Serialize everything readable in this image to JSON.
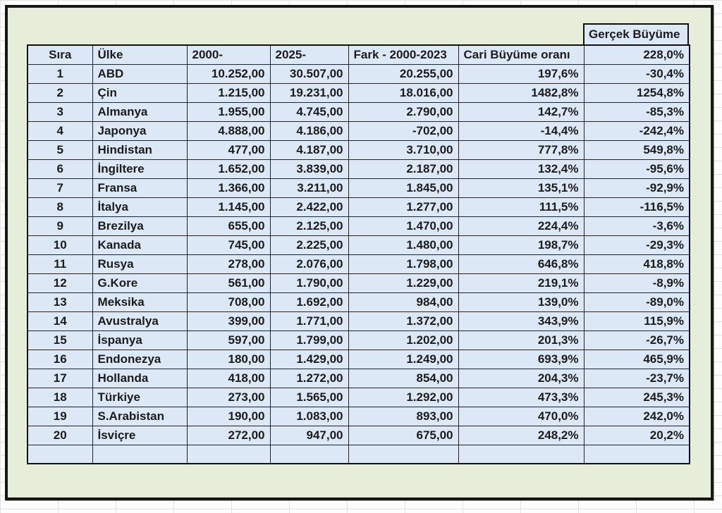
{
  "colors": {
    "accent_red": "#e0353d",
    "text_black": "#1c1c1c",
    "cell_fill": "#dce8f5",
    "panel_green": "#e6eeda",
    "frame_black": "#161616"
  },
  "gercek_panel": {
    "title": "Gerçek Büyüme",
    "header_value": "228,0%"
  },
  "table": {
    "headers": [
      "Sıra",
      "Ülke",
      "2000-",
      "2025-",
      "Fark - 2000-2023",
      "Cari Büyüme oranı"
    ],
    "rows": [
      {
        "color": "red",
        "cells": [
          "1",
          "ABD",
          "10.252,00",
          "30.507,00",
          "20.255,00",
          "197,6%",
          "-30,4%"
        ]
      },
      {
        "color": "black",
        "cells": [
          "2",
          "Çin",
          "1.215,00",
          "19.231,00",
          "18.016,00",
          "1482,8%",
          "1254,8%"
        ]
      },
      {
        "color": "red",
        "cells": [
          "3",
          "Almanya",
          "1.955,00",
          "4.745,00",
          "2.790,00",
          "142,7%",
          "-85,3%"
        ]
      },
      {
        "color": "red",
        "cells": [
          "4",
          "Japonya",
          "4.888,00",
          "4.186,00",
          "-702,00",
          "-14,4%",
          "-242,4%"
        ]
      },
      {
        "color": "black",
        "cells": [
          "5",
          "Hindistan",
          "477,00",
          "4.187,00",
          "3.710,00",
          "777,8%",
          "549,8%"
        ]
      },
      {
        "color": "red",
        "cells": [
          "6",
          "İngiltere",
          "1.652,00",
          "3.839,00",
          "2.187,00",
          "132,4%",
          "-95,6%"
        ]
      },
      {
        "color": "red",
        "cells": [
          "7",
          "Fransa",
          "1.366,00",
          "3.211,00",
          "1.845,00",
          "135,1%",
          "-92,9%"
        ]
      },
      {
        "color": "red",
        "cells": [
          "8",
          "İtalya",
          "1.145,00",
          "2.422,00",
          "1.277,00",
          "111,5%",
          "-116,5%"
        ]
      },
      {
        "color": "red",
        "cells": [
          "9",
          "Brezilya",
          "655,00",
          "2.125,00",
          "1.470,00",
          "224,4%",
          "-3,6%"
        ]
      },
      {
        "color": "red",
        "cells": [
          "10",
          "Kanada",
          "745,00",
          "2.225,00",
          "1.480,00",
          "198,7%",
          "-29,3%"
        ]
      },
      {
        "color": "black",
        "cells": [
          "11",
          "Rusya",
          "278,00",
          "2.076,00",
          "1.798,00",
          "646,8%",
          "418,8%"
        ]
      },
      {
        "color": "red",
        "cells": [
          "12",
          "G.Kore",
          "561,00",
          "1.790,00",
          "1.229,00",
          "219,1%",
          "-8,9%"
        ]
      },
      {
        "color": "red",
        "cells": [
          "13",
          "Meksika",
          "708,00",
          "1.692,00",
          "984,00",
          "139,0%",
          "-89,0%"
        ]
      },
      {
        "color": "black",
        "cells": [
          "14",
          "Avustralya",
          "399,00",
          "1.771,00",
          "1.372,00",
          "343,9%",
          "115,9%"
        ]
      },
      {
        "color": "red",
        "cells": [
          "15",
          "İspanya",
          "597,00",
          "1.799,00",
          "1.202,00",
          "201,3%",
          "-26,7%"
        ]
      },
      {
        "color": "black",
        "cells": [
          "16",
          "Endonezya",
          "180,00",
          "1.429,00",
          "1.249,00",
          "693,9%",
          "465,9%"
        ]
      },
      {
        "color": "red",
        "cells": [
          "17",
          "Hollanda",
          "418,00",
          "1.272,00",
          "854,00",
          "204,3%",
          "-23,7%"
        ]
      },
      {
        "color": "black",
        "cells": [
          "18",
          "Türkiye",
          "273,00",
          "1.565,00",
          "1.292,00",
          "473,3%",
          "245,3%"
        ]
      },
      {
        "color": "black",
        "cells": [
          "19",
          "S.Arabistan",
          "190,00",
          "1.083,00",
          "893,00",
          "470,0%",
          "242,0%"
        ]
      },
      {
        "color": "black",
        "cells": [
          "20",
          "İsviçre",
          "272,00",
          "947,00",
          "675,00",
          "248,2%",
          "20,2%"
        ]
      },
      {
        "color": "none",
        "cells": [
          "",
          "",
          "",
          "",
          "",
          "",
          ""
        ]
      }
    ]
  }
}
